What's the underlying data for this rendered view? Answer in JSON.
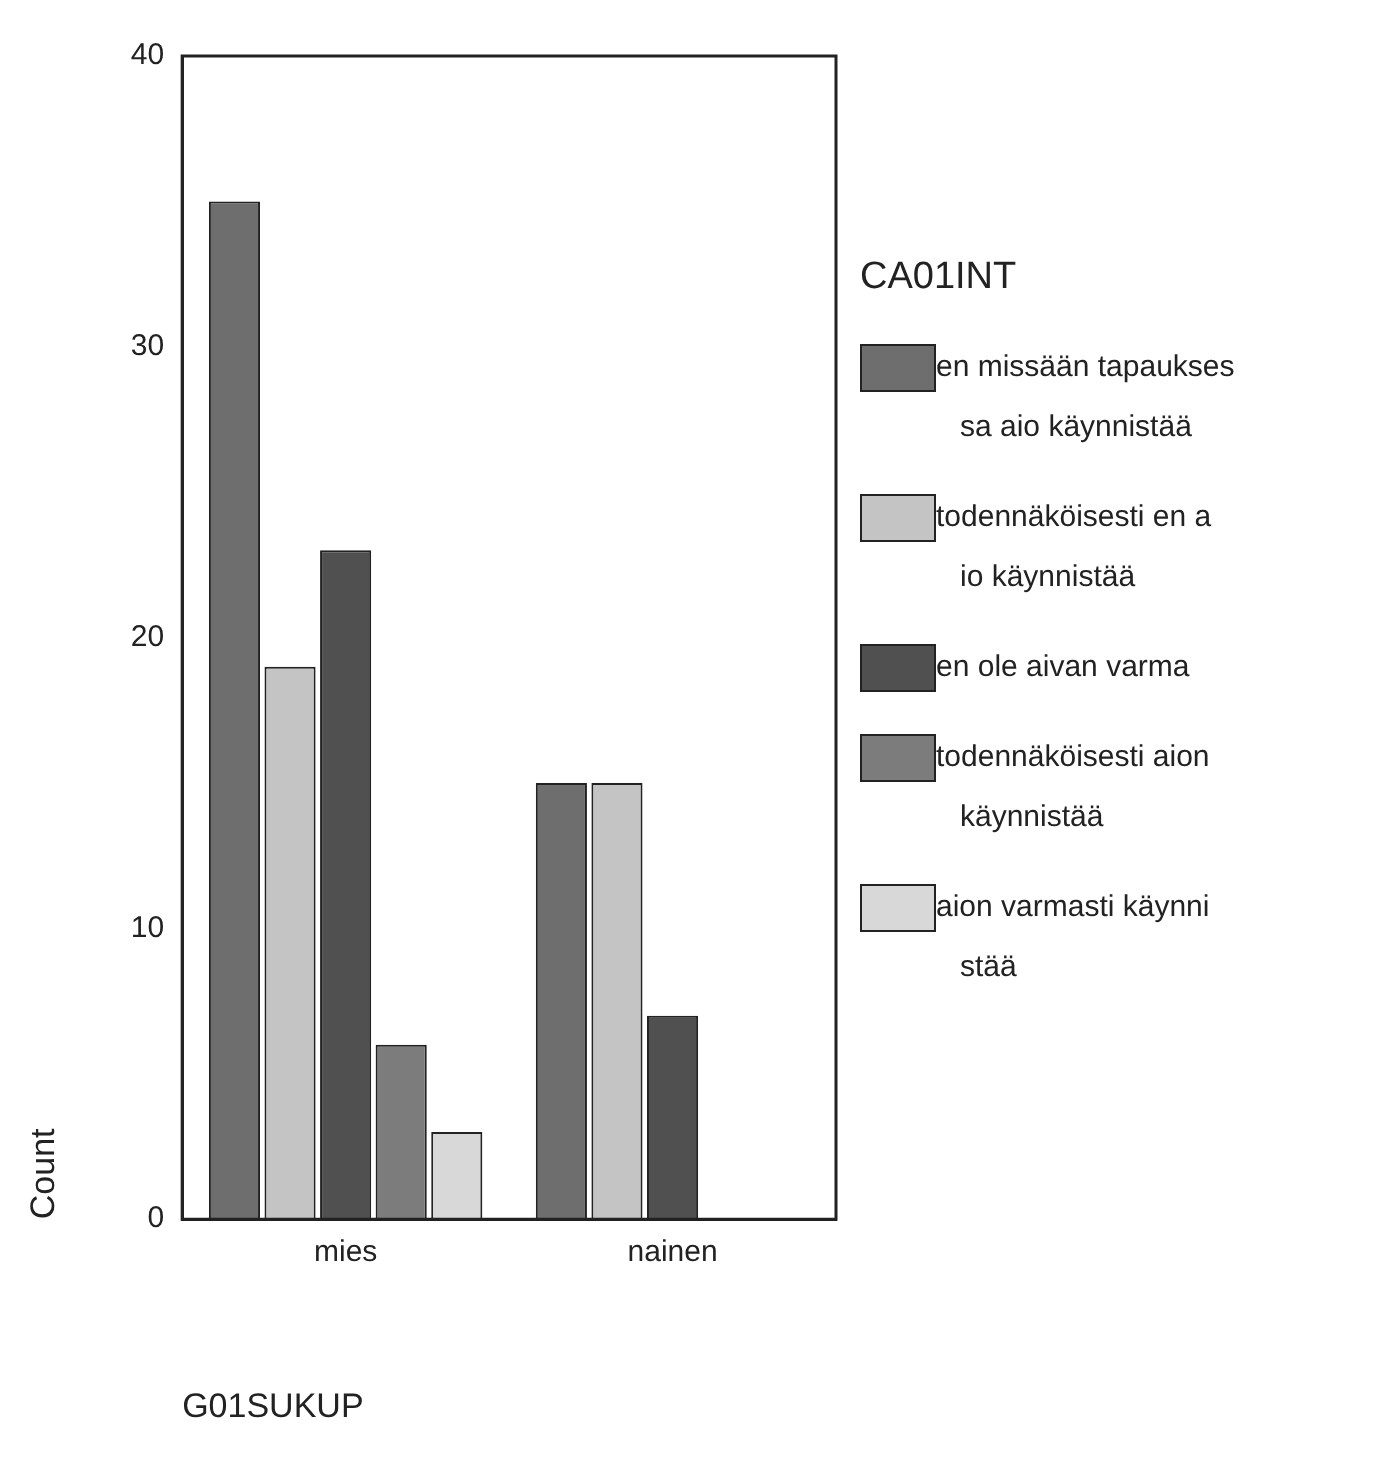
{
  "chart_data": {
    "type": "bar",
    "xlabel": "G01SUKUP",
    "ylabel": "Count",
    "legend_title": "CA01INT",
    "categories": [
      "mies",
      "nainen"
    ],
    "series": [
      {
        "name": "en missään tapaukses\nsa aio käynnistää",
        "color": "#6e6e6e",
        "values": [
          35,
          15
        ]
      },
      {
        "name": "todennäköisesti en a\nio käynnistää",
        "color": "#c4c4c4",
        "values": [
          19,
          15
        ]
      },
      {
        "name": "en ole aivan varma",
        "color": "#505050",
        "values": [
          23,
          7
        ]
      },
      {
        "name": "todennäköisesti aion\nkäynnistää",
        "color": "#7c7c7c",
        "values": [
          6,
          0
        ]
      },
      {
        "name": "aion varmasti käynni\nstää",
        "color": "#d8d8d8",
        "values": [
          3,
          0
        ]
      }
    ],
    "ylim": [
      0,
      40
    ],
    "yticks": [
      0,
      10,
      20,
      30,
      40
    ],
    "grid": false,
    "legend": "right"
  }
}
